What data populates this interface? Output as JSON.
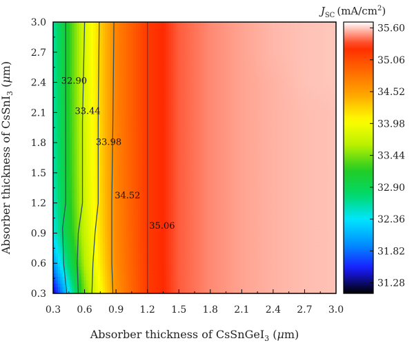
{
  "chart_data": {
    "type": "heatmap",
    "subtype": "filled-contour",
    "title": "",
    "xlabel": "Absorber thickness of CsSnGeI₃ (μm)",
    "ylabel": "Absorber thickness of CsSnI₃ (μm)",
    "colorbar_label": "J_SC (mA/cm²)",
    "colorbar_label_parts": {
      "symbol": "J",
      "subscript": "SC",
      "unit": "(mA/cm",
      "sup": "2",
      "unit_end": ")"
    },
    "xlabel_parts": {
      "pre": "Absorber thickness of CsSnGeI",
      "sub": "3",
      "post": " (",
      "mu": "μ",
      "end": "m)"
    },
    "ylabel_parts": {
      "pre": "Absorber thickness of CsSnI",
      "sub": "3",
      "post": " (",
      "mu": "μ",
      "end": "m)"
    },
    "xlim": [
      0.3,
      3.0
    ],
    "ylim": [
      0.3,
      3.0
    ],
    "x_ticks": [
      "0.3",
      "0.6",
      "0.9",
      "1.2",
      "1.5",
      "1.8",
      "2.1",
      "2.4",
      "2.7",
      "3.0"
    ],
    "y_ticks": [
      "0.3",
      "0.6",
      "0.9",
      "1.2",
      "1.5",
      "1.8",
      "2.1",
      "2.4",
      "2.7",
      "3.0"
    ],
    "colorbar_range": [
      31.1,
      35.7
    ],
    "colorbar_ticks": [
      "35.60",
      "35.06",
      "34.52",
      "33.98",
      "33.44",
      "32.90",
      "32.36",
      "31.82",
      "31.28"
    ],
    "colormap": [
      "#000000",
      "#1a1aff",
      "#0090ff",
      "#00e5ff",
      "#00d96a",
      "#22cc22",
      "#b8f000",
      "#ffff00",
      "#ffaa00",
      "#ff6a00",
      "#ff2a00",
      "#ffffff"
    ],
    "x": [
      0.3,
      0.6,
      0.9,
      1.2,
      1.5,
      1.8,
      2.1,
      2.4,
      2.7,
      3.0
    ],
    "y": [
      0.3,
      0.6,
      0.9,
      1.2,
      1.5,
      1.8,
      2.1,
      2.4,
      2.7,
      3.0
    ],
    "z": [
      [
        31.3,
        33.4,
        34.6,
        35.17,
        35.38,
        35.47,
        35.52,
        35.55,
        35.57,
        35.58
      ],
      [
        32.0,
        33.6,
        34.65,
        35.18,
        35.38,
        35.47,
        35.52,
        35.55,
        35.57,
        35.58
      ],
      [
        32.4,
        33.7,
        34.67,
        35.18,
        35.38,
        35.47,
        35.52,
        35.55,
        35.57,
        35.58
      ],
      [
        32.5,
        33.75,
        34.68,
        35.18,
        35.38,
        35.47,
        35.52,
        35.55,
        35.57,
        35.58
      ],
      [
        32.55,
        33.77,
        34.69,
        35.18,
        35.38,
        35.47,
        35.52,
        35.55,
        35.57,
        35.58
      ],
      [
        32.57,
        33.78,
        34.69,
        35.18,
        35.38,
        35.47,
        35.52,
        35.55,
        35.57,
        35.58
      ],
      [
        32.58,
        33.79,
        34.7,
        35.18,
        35.38,
        35.47,
        35.52,
        35.55,
        35.57,
        35.58
      ],
      [
        32.6,
        33.8,
        34.7,
        35.18,
        35.38,
        35.47,
        35.52,
        35.55,
        35.58,
        35.59
      ],
      [
        32.6,
        33.8,
        34.7,
        35.18,
        35.38,
        35.47,
        35.52,
        35.56,
        35.58,
        35.59
      ],
      [
        32.6,
        33.8,
        34.7,
        35.18,
        35.38,
        35.47,
        35.52,
        35.56,
        35.58,
        35.59
      ]
    ],
    "contour_lines": [
      {
        "label": "32.90",
        "points": [
          [
            0.42,
            3.0
          ],
          [
            0.42,
            2.0
          ],
          [
            0.42,
            1.2
          ],
          [
            0.39,
            0.95
          ],
          [
            0.4,
            0.6
          ],
          [
            0.43,
            0.3
          ]
        ]
      },
      {
        "label": "33.44",
        "points": [
          [
            0.6,
            3.0
          ],
          [
            0.58,
            2.0
          ],
          [
            0.58,
            1.2
          ],
          [
            0.54,
            0.9
          ],
          [
            0.53,
            0.6
          ],
          [
            0.54,
            0.3
          ]
        ]
      },
      {
        "label": "33.98",
        "points": [
          [
            0.74,
            3.0
          ],
          [
            0.73,
            2.0
          ],
          [
            0.73,
            1.2
          ],
          [
            0.7,
            0.9
          ],
          [
            0.68,
            0.6
          ],
          [
            0.67,
            0.3
          ]
        ]
      },
      {
        "label": "34.52",
        "points": [
          [
            0.88,
            3.0
          ],
          [
            0.87,
            2.0
          ],
          [
            0.86,
            1.2
          ],
          [
            0.86,
            0.9
          ],
          [
            0.86,
            0.6
          ],
          [
            0.87,
            0.3
          ]
        ]
      },
      {
        "label": "35.06",
        "points": [
          [
            1.2,
            3.0
          ],
          [
            1.2,
            0.3
          ]
        ]
      }
    ],
    "contour_labels": [
      {
        "text": "32.90",
        "x": 0.5,
        "y": 2.42
      },
      {
        "text": "33.44",
        "x": 0.63,
        "y": 2.12
      },
      {
        "text": "33.98",
        "x": 0.83,
        "y": 1.81
      },
      {
        "text": "34.52",
        "x": 1.01,
        "y": 1.28
      },
      {
        "text": "35.06",
        "x": 1.34,
        "y": 0.98
      }
    ],
    "grid": false,
    "legend": "colorbar-right"
  }
}
